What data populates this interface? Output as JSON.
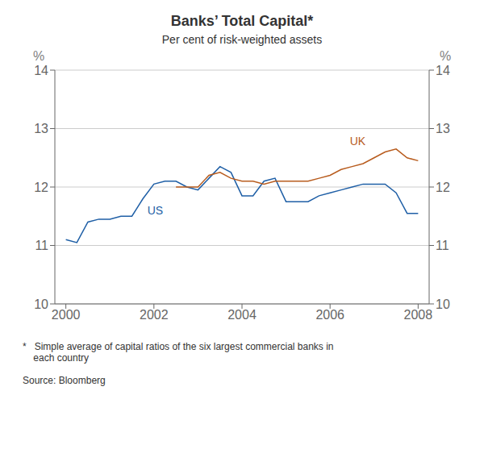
{
  "chart_data": {
    "type": "line",
    "title": "Banks’ Total Capital*",
    "subtitle": "Per cent of risk-weighted assets",
    "footnote": "*   Simple average of capital ratios of the six largest commercial banks in\n    each country",
    "source": "Source: Bloomberg",
    "ylabel": "%",
    "y2label": "%",
    "series": [
      {
        "color": "#1f5fa6",
        "x": [
          2000.0,
          2000.25,
          2000.5,
          2000.75,
          2001.0,
          2001.25,
          2001.5,
          2001.75,
          2002.0,
          2002.25,
          2002.5,
          2002.75,
          2003.0,
          2003.25,
          2003.5,
          2003.75,
          2004.0,
          2004.25,
          2004.5,
          2004.75,
          2005.0,
          2005.25,
          2005.5,
          2005.75,
          2006.0,
          2006.25,
          2006.5,
          2006.75,
          2007.0,
          2007.25,
          2007.5,
          2007.75,
          2008.0
        ],
        "values": [
          11.1,
          11.05,
          11.4,
          11.45,
          11.45,
          11.5,
          11.5,
          11.8,
          12.05,
          12.1,
          12.1,
          12.0,
          11.95,
          12.15,
          12.35,
          12.25,
          11.85,
          11.85,
          12.1,
          12.15,
          11.75,
          11.75,
          11.75,
          11.85,
          11.9,
          11.95,
          12.0,
          12.05,
          12.05,
          12.05,
          11.9,
          11.55,
          11.55
        ]
      },
      {
        "color": "#b85c1e",
        "x": [
          2002.5,
          2002.75,
          2003.0,
          2003.25,
          2003.5,
          2003.75,
          2004.0,
          2004.25,
          2004.5,
          2004.75,
          2005.0,
          2005.25,
          2005.5,
          2005.75,
          2006.0,
          2006.25,
          2006.5,
          2006.75,
          2007.0,
          2007.25,
          2007.5,
          2007.75,
          2008.0
        ],
        "values": [
          12.0,
          12.0,
          12.0,
          12.2,
          12.25,
          12.15,
          12.1,
          12.1,
          12.05,
          12.1,
          12.1,
          12.1,
          12.1,
          12.15,
          12.2,
          12.3,
          12.35,
          12.4,
          12.5,
          12.6,
          12.65,
          12.5,
          12.45
        ]
      }
    ],
    "annotations": [
      {
        "text": "US",
        "x": 2001.85,
        "y": 11.53,
        "color": "#1f5fa6"
      },
      {
        "text": "UK",
        "x": 2006.45,
        "y": 12.72,
        "color": "#b85c1e"
      }
    ],
    "xlim": [
      1999.75,
      2008.25
    ],
    "xticks": [
      2000,
      2002,
      2004,
      2006,
      2008
    ],
    "ylim": [
      10,
      14
    ],
    "yticks": [
      10,
      11,
      12,
      13,
      14
    ],
    "y2lim": [
      10,
      14
    ],
    "y2ticks": [
      10,
      11,
      12,
      13,
      14
    ],
    "grid": true
  }
}
